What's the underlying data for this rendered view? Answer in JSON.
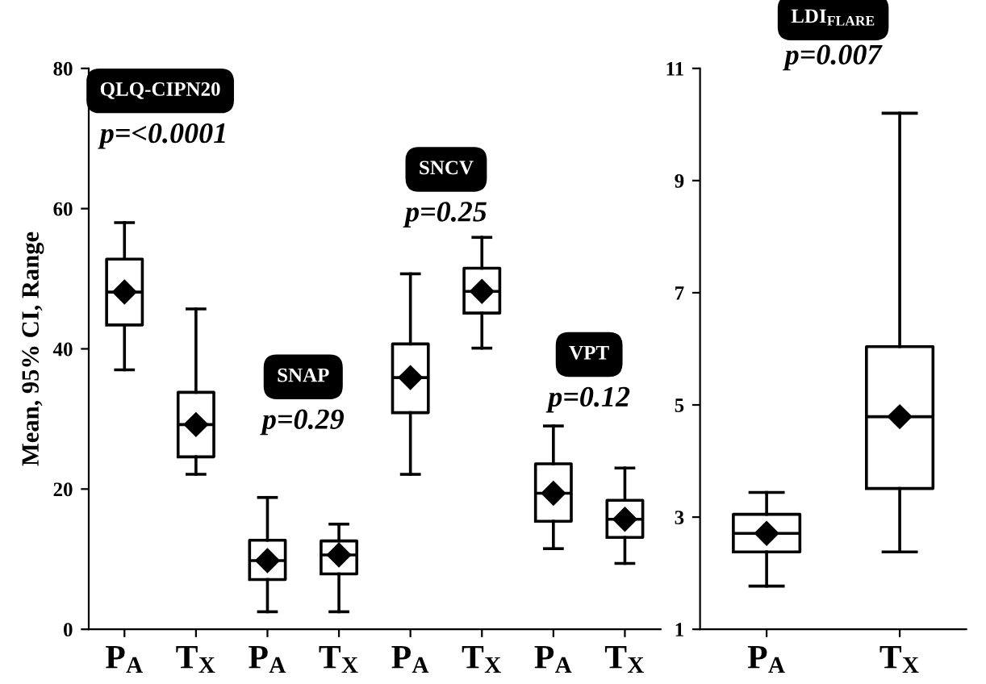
{
  "chart_data": [
    {
      "type": "box",
      "ylabel": "Mean, 95% CI, Range",
      "categories": [
        "P$_{A}$",
        "T$_{X}$",
        "P$_{A}$",
        "T$_{X}$",
        "P$_{A}$",
        "T$_{X}$",
        "P$_{A}$",
        "T$_{X}$"
      ],
      "boxes": [
        {
          "low": 37,
          "q1": 43.4,
          "median": 48.1,
          "q3": 52.8,
          "high": 58,
          "mean": 48.1
        },
        {
          "low": 22.1,
          "q1": 24.6,
          "median": 29.2,
          "q3": 33.8,
          "high": 45.7,
          "mean": 29.2
        },
        {
          "low": 2.5,
          "q1": 7.1,
          "median": 9.8,
          "q3": 12.7,
          "high": 18.8,
          "mean": 9.8
        },
        {
          "low": 2.5,
          "q1": 7.9,
          "median": 10.6,
          "q3": 12.6,
          "high": 15,
          "mean": 10.6
        },
        {
          "low": 22.1,
          "q1": 30.9,
          "median": 35.9,
          "q3": 40.7,
          "high": 50.7,
          "mean": 35.9
        },
        {
          "low": 40.1,
          "q1": 45.1,
          "median": 48.2,
          "q3": 51.5,
          "high": 55.9,
          "mean": 48.2
        },
        {
          "low": 11.5,
          "q1": 15.4,
          "median": 19.4,
          "q3": 23.6,
          "high": 29,
          "mean": 19.4
        },
        {
          "low": 9.4,
          "q1": 13.1,
          "median": 15.7,
          "q3": 18.4,
          "high": 23,
          "mean": 15.7
        }
      ],
      "ylim": [
        0,
        80
      ],
      "yticks": [
        0,
        20,
        40,
        60,
        80
      ],
      "grid": false,
      "marker": "diamond",
      "annotations": [
        "QLQ-CIPN20",
        "p=<0.0001",
        "SNAP",
        "p=0.29",
        "SNCV",
        "p=0.25",
        "VPT",
        "p=0.12"
      ]
    },
    {
      "type": "box",
      "categories": [
        "P$_{A}$",
        "T$_{X}$"
      ],
      "boxes": [
        {
          "low": 1.77,
          "q1": 2.38,
          "median": 2.71,
          "q3": 3.05,
          "high": 3.44,
          "mean": 2.71
        },
        {
          "low": 2.38,
          "q1": 3.51,
          "median": 4.79,
          "q3": 6.04,
          "high": 10.2,
          "mean": 4.79
        }
      ],
      "ylim": [
        1,
        11
      ],
      "yticks": [
        1,
        3,
        5,
        7,
        9,
        11
      ],
      "grid": false,
      "marker": "diamond",
      "annotations": [
        "LDI$_{FLARE}$",
        "p=0.007"
      ]
    }
  ]
}
